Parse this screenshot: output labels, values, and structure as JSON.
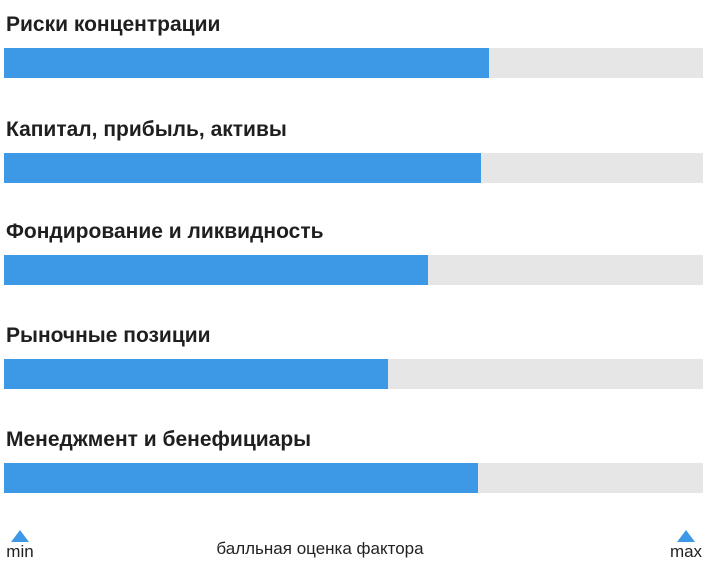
{
  "chart_data": {
    "type": "bar",
    "orientation": "horizontal",
    "categories": [
      "Риски концентрации",
      "Капитал, прибыль, активы",
      "Фондирование и ликвидность",
      "Рыночные позиции",
      "Менеджмент и бенефициары"
    ],
    "values": [
      0.694,
      0.682,
      0.606,
      0.55,
      0.678
    ],
    "xlim": [
      0,
      1
    ],
    "grid": false,
    "legend": "none",
    "colors": {
      "bar": "#3d99e6",
      "track": "#e6e6e6",
      "marker": "#3d99e6"
    }
  },
  "scale": {
    "min_label": "min",
    "max_label": "max",
    "caption": "балльная оценка фактора",
    "marker_icon": "triangle-up-icon"
  }
}
